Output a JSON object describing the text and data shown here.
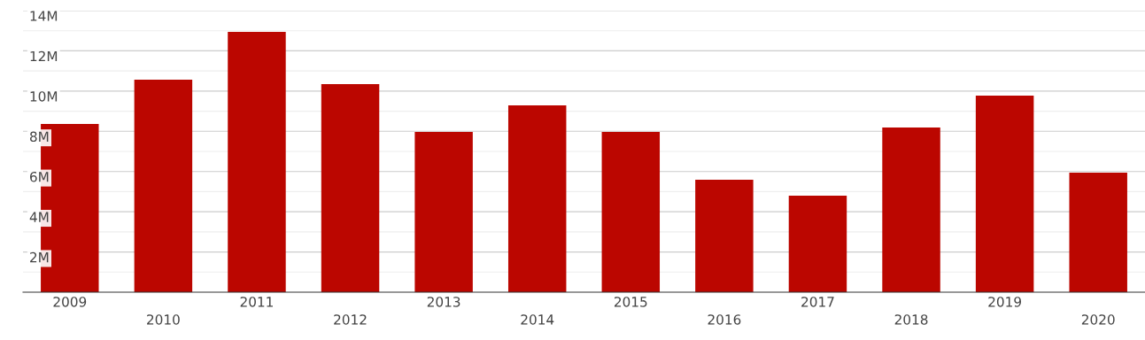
{
  "chart_data": {
    "type": "bar",
    "categories": [
      "2009",
      "2010",
      "2011",
      "2012",
      "2013",
      "2014",
      "2015",
      "2016",
      "2017",
      "2018",
      "2019",
      "2020"
    ],
    "values": [
      8370000,
      10570000,
      12940000,
      10350000,
      7970000,
      9290000,
      7970000,
      5590000,
      4800000,
      8190000,
      9770000,
      5940000
    ],
    "color": "#bb0600",
    "ylim": [
      0,
      14000000
    ],
    "yticks": [
      {
        "value": 1000000,
        "label": null
      },
      {
        "value": 2000000,
        "label": "2M"
      },
      {
        "value": 3000000,
        "label": null
      },
      {
        "value": 4000000,
        "label": "4M"
      },
      {
        "value": 5000000,
        "label": null
      },
      {
        "value": 6000000,
        "label": "6M"
      },
      {
        "value": 7000000,
        "label": null
      },
      {
        "value": 8000000,
        "label": "8M"
      },
      {
        "value": 9000000,
        "label": null
      },
      {
        "value": 10000000,
        "label": "10M"
      },
      {
        "value": 11000000,
        "label": null
      },
      {
        "value": 12000000,
        "label": "12M"
      },
      {
        "value": 13000000,
        "label": null
      },
      {
        "value": 14000000,
        "label": "14M"
      }
    ],
    "grid": "y"
  }
}
